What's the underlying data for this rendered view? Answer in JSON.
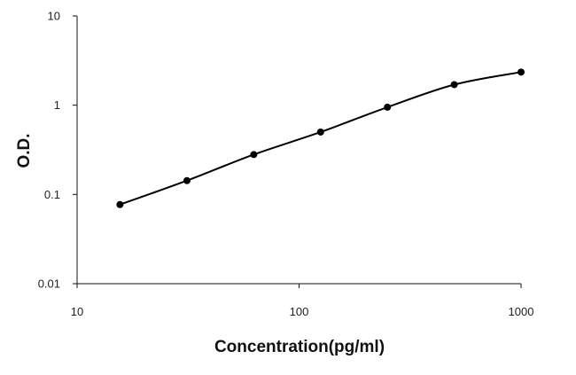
{
  "chart_data": {
    "type": "scatter",
    "xlabel": "Concentration(pg/ml)",
    "ylabel": "O.D.",
    "xscale": "log",
    "yscale": "log",
    "xlim": [
      10,
      1000
    ],
    "ylim": [
      0.01,
      10
    ],
    "x_ticks": [
      10,
      100,
      1000
    ],
    "x_tick_labels": [
      "10",
      "100",
      "1000"
    ],
    "y_ticks": [
      0.01,
      0.1,
      1,
      10
    ],
    "y_tick_labels": [
      "0.01",
      "0.1",
      "1",
      "10"
    ],
    "grid": false,
    "legend": "none",
    "fit_line": true,
    "point_color": "#000000",
    "line_color": "#000000",
    "series": [
      {
        "x": [
          15.6,
          31.25,
          62.5,
          125,
          250,
          500,
          1000
        ],
        "y": [
          0.077,
          0.143,
          0.28,
          0.5,
          0.95,
          1.7,
          2.35
        ]
      }
    ]
  }
}
